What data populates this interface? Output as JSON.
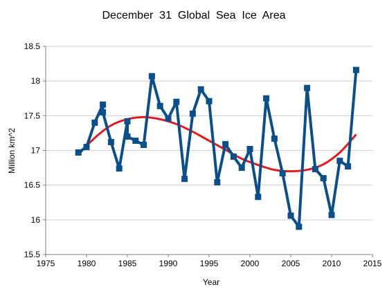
{
  "chart_data": {
    "type": "line",
    "title": "December  31  Global  Sea  Ice  Area",
    "xlabel": "Year",
    "ylabel": "Million km^2",
    "xlim": [
      1975,
      2015
    ],
    "ylim": [
      15.5,
      18.5
    ],
    "x_ticks": [
      1975,
      1980,
      1985,
      1990,
      1995,
      2000,
      2005,
      2010,
      2015
    ],
    "y_ticks": [
      "15.5",
      "16",
      "16.5",
      "17",
      "17.5",
      "18",
      "18.5"
    ],
    "grid": "horizontal",
    "legend": "none",
    "series": [
      {
        "kind": "line-markers",
        "color": "#0b4f8a",
        "x": [
          1979,
          1980,
          1981,
          1982,
          1982,
          1983,
          1984,
          1985,
          1985,
          1986,
          1987,
          1988,
          1989,
          1990,
          1991,
          1992,
          1993,
          1994,
          1995,
          1996,
          1997,
          1998,
          1999,
          2000,
          2001,
          2002,
          2003,
          2004,
          2005,
          2006,
          2007,
          2008,
          2009,
          2010,
          2011,
          2012,
          2013
        ],
        "y": [
          16.97,
          17.05,
          17.4,
          17.66,
          17.55,
          17.12,
          16.74,
          17.42,
          17.2,
          17.14,
          17.08,
          18.07,
          17.64,
          17.46,
          17.7,
          16.59,
          17.53,
          17.88,
          17.71,
          16.54,
          17.09,
          16.91,
          16.75,
          17.02,
          16.33,
          17.75,
          17.17,
          16.67,
          16.06,
          15.9,
          17.9,
          16.73,
          16.6,
          16.07,
          16.85,
          16.77,
          18.16
        ]
      },
      {
        "kind": "trend",
        "color": "#e31a1c",
        "x": [
          1979,
          1981,
          1983,
          1985,
          1987,
          1989,
          1991,
          1993,
          1995,
          1997,
          1999,
          2001,
          2003,
          2005,
          2007,
          2009,
          2011,
          2013
        ],
        "y": [
          16.94,
          17.18,
          17.36,
          17.45,
          17.48,
          17.45,
          17.38,
          17.27,
          17.14,
          17.01,
          16.88,
          16.79,
          16.72,
          16.7,
          16.72,
          16.8,
          16.97,
          17.23
        ]
      }
    ]
  }
}
